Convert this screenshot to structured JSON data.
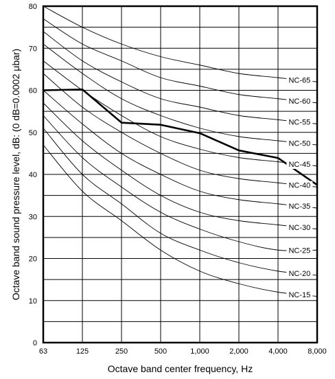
{
  "chart_data": {
    "type": "line",
    "xlabel": "Octave band center frequency, Hz",
    "ylabel": "Octave band sound pressure level, dB: (0 dB=0.0002 μbar)",
    "x_categories": [
      "63",
      "125",
      "250",
      "500",
      "1,000",
      "2,000",
      "4,000",
      "8,000"
    ],
    "ylim": [
      0,
      80
    ],
    "y_ticks": [
      "0",
      "10",
      "20",
      "30",
      "40",
      "50",
      "60",
      "70",
      "80"
    ],
    "grid": true,
    "label_position": "right",
    "series": [
      {
        "name": "NC-65",
        "values": [
          80,
          75,
          71,
          68,
          66,
          64,
          63,
          62
        ]
      },
      {
        "name": "NC-60",
        "values": [
          77,
          71,
          67,
          63,
          61,
          59,
          58,
          57
        ]
      },
      {
        "name": "NC-55",
        "values": [
          74,
          67,
          62,
          58,
          56,
          54,
          53,
          52
        ]
      },
      {
        "name": "NC-50",
        "values": [
          71,
          64,
          58,
          54,
          51,
          49,
          48,
          47
        ]
      },
      {
        "name": "NC-45",
        "values": [
          67,
          60,
          54,
          49,
          46,
          44,
          43,
          42
        ]
      },
      {
        "name": "NC-40",
        "values": [
          64,
          56,
          50,
          45,
          41,
          39,
          38,
          37
        ]
      },
      {
        "name": "NC-35",
        "values": [
          60,
          52,
          45,
          40,
          36,
          34,
          33,
          32
        ]
      },
      {
        "name": "NC-30",
        "values": [
          57,
          48,
          41,
          35,
          31,
          29,
          28,
          27
        ]
      },
      {
        "name": "NC-25",
        "values": [
          54,
          44,
          37,
          31,
          27,
          24,
          22,
          22
        ]
      },
      {
        "name": "NC-20",
        "values": [
          51,
          40,
          33,
          26,
          22,
          19,
          17,
          16
        ]
      },
      {
        "name": "NC-15",
        "values": [
          47,
          36,
          29,
          22,
          17,
          14,
          12,
          11
        ]
      }
    ],
    "measured": {
      "values": [
        60,
        60.2,
        52.3,
        51.8,
        49.8,
        45.7,
        43.9,
        37.5
      ]
    }
  }
}
